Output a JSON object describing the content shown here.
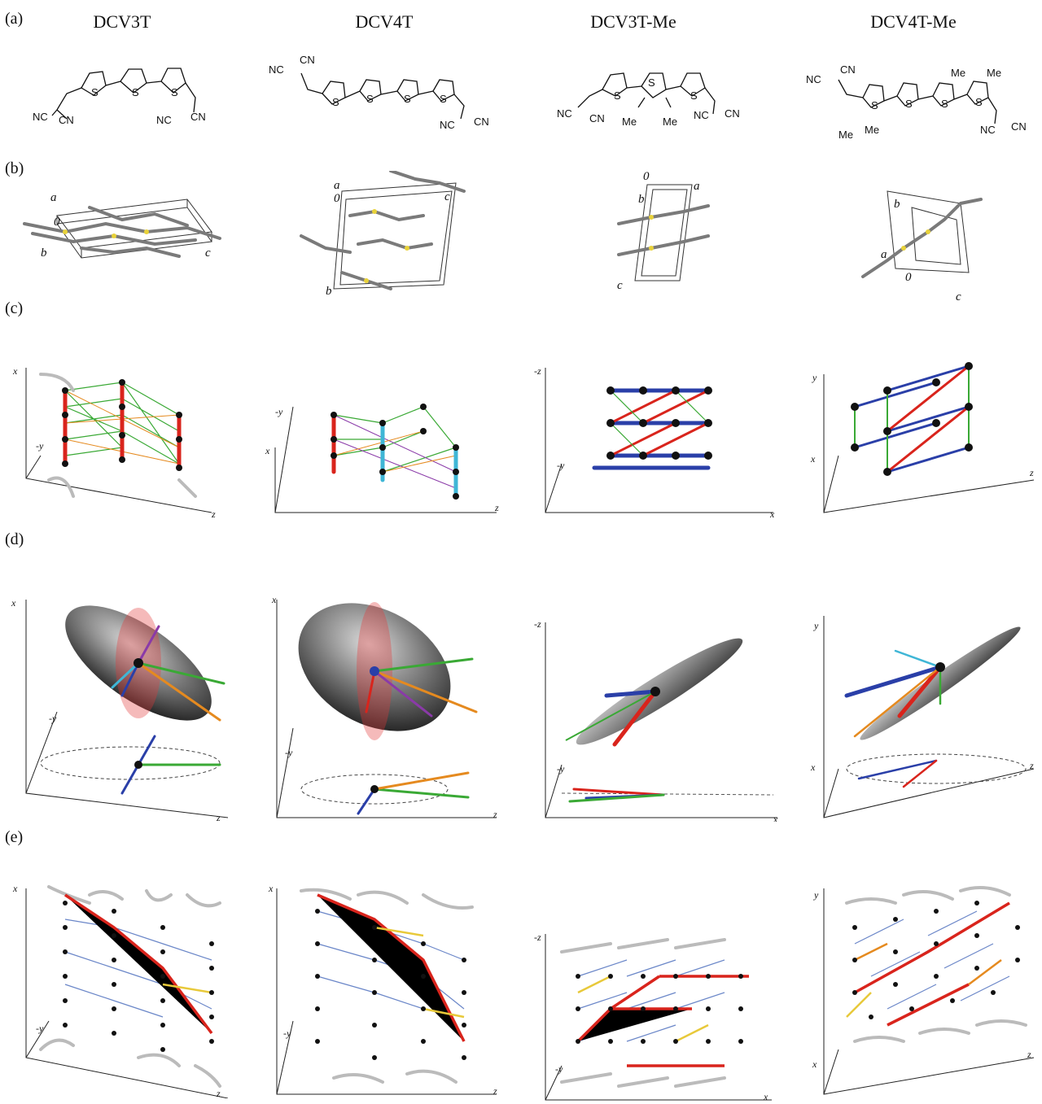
{
  "row_labels": {
    "a": "(a)",
    "b": "(b)",
    "c": "(c)",
    "d": "(d)",
    "e": "(e)"
  },
  "columns": [
    {
      "title": "DCV3T",
      "chem_labels": [
        "NC",
        "CN",
        "NC",
        "CN",
        "S",
        "S",
        "S"
      ],
      "cell_labels": [
        "a",
        "0",
        "b",
        "c"
      ],
      "axes_c": [
        "x",
        "-y",
        "z"
      ],
      "axes_d": [
        "x",
        "-y",
        "z"
      ],
      "axes_e": [
        "x",
        "-y",
        "z"
      ]
    },
    {
      "title": "DCV4T",
      "chem_labels": [
        "NC",
        "CN",
        "NC",
        "CN",
        "S",
        "S",
        "S",
        "S"
      ],
      "cell_labels": [
        "a",
        "0",
        "c",
        "b"
      ],
      "axes_c": [
        "-y",
        "x",
        "z"
      ],
      "axes_d": [
        "x",
        "-y",
        "z"
      ],
      "axes_e": [
        "x",
        "-y",
        "z"
      ]
    },
    {
      "title": "DCV3T-Me",
      "chem_labels": [
        "NC",
        "CN",
        "NC",
        "CN",
        "Me",
        "Me",
        "S",
        "S",
        "S"
      ],
      "cell_labels": [
        "0",
        "a",
        "b",
        "c"
      ],
      "axes_c": [
        "-z",
        "-y",
        "x"
      ],
      "axes_d": [
        "-z",
        "-y",
        "x"
      ],
      "axes_e": [
        "-z",
        "-y",
        "x"
      ]
    },
    {
      "title": "DCV4T-Me",
      "chem_labels": [
        "NC",
        "CN",
        "NC",
        "CN",
        "Me",
        "Me",
        "Me",
        "Me",
        "S",
        "S",
        "S",
        "S"
      ],
      "cell_labels": [
        "b",
        "a",
        "0",
        "c"
      ],
      "axes_c": [
        "y",
        "x",
        "z"
      ],
      "axes_d": [
        "y",
        "x",
        "z"
      ],
      "axes_e": [
        "y",
        "x",
        "z"
      ]
    }
  ],
  "colors": {
    "green": "#3aa935",
    "red": "#d9241c",
    "blue": "#2a3fa8",
    "cyan": "#3fb6d6",
    "orange": "#e58a1f",
    "purple": "#8a3aa8",
    "gray": "#888888",
    "yellow": "#e8c93a"
  }
}
